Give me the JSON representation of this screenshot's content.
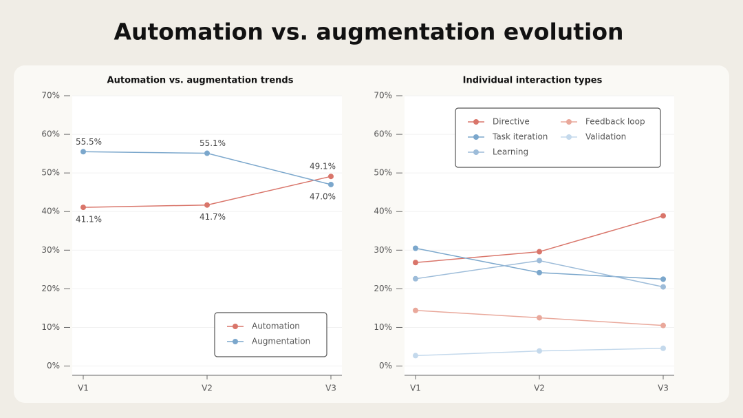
{
  "title": "Automation vs. augmentation evolution",
  "chart_data": [
    {
      "type": "line",
      "title": "Automation vs. augmentation trends",
      "categories": [
        "V1",
        "V2",
        "V3"
      ],
      "series": [
        {
          "name": "Automation",
          "color": "#d9756a",
          "values": [
            41.1,
            41.7,
            49.1
          ],
          "value_labels": [
            "41.1%",
            "41.7%",
            "49.1%"
          ]
        },
        {
          "name": "Augmentation",
          "color": "#7ba7cc",
          "values": [
            55.5,
            55.1,
            47.0
          ],
          "value_labels": [
            "55.5%",
            "55.1%",
            "47.0%"
          ]
        }
      ],
      "ylim": [
        -2.4,
        70
      ],
      "yticks": [
        {
          "value": 0,
          "label": "0%"
        },
        {
          "value": 10,
          "label": "10%"
        },
        {
          "value": 20,
          "label": "20%"
        },
        {
          "value": 30,
          "label": "30%"
        },
        {
          "value": 40,
          "label": "40%"
        },
        {
          "value": 50,
          "label": "50%"
        },
        {
          "value": 60,
          "label": "60%"
        },
        {
          "value": 70,
          "label": "70%"
        }
      ],
      "grid": true,
      "legend": "lower right"
    },
    {
      "type": "line",
      "title": "Individual interaction types",
      "categories": [
        "V1",
        "V2",
        "V3"
      ],
      "series": [
        {
          "name": "Directive",
          "color": "#d9756a",
          "values": [
            26.8,
            29.6,
            38.9
          ]
        },
        {
          "name": "Feedback loop",
          "color": "#e9a89b",
          "values": [
            14.4,
            12.5,
            10.5
          ]
        },
        {
          "name": "Task iteration",
          "color": "#7ba7cc",
          "values": [
            30.5,
            24.2,
            22.5
          ]
        },
        {
          "name": "Validation",
          "color": "#c4d9ec",
          "values": [
            2.7,
            3.9,
            4.6
          ]
        },
        {
          "name": "Learning",
          "color": "#9dbcd9",
          "values": [
            22.6,
            27.3,
            20.5
          ]
        }
      ],
      "ylim": [
        -2.4,
        70
      ],
      "yticks": [
        {
          "value": 0,
          "label": "0%"
        },
        {
          "value": 10,
          "label": "10%"
        },
        {
          "value": 20,
          "label": "20%"
        },
        {
          "value": 30,
          "label": "30%"
        },
        {
          "value": 40,
          "label": "40%"
        },
        {
          "value": 50,
          "label": "50%"
        },
        {
          "value": 60,
          "label": "60%"
        },
        {
          "value": 70,
          "label": "70%"
        }
      ],
      "grid": true,
      "legend": "upper left"
    }
  ]
}
